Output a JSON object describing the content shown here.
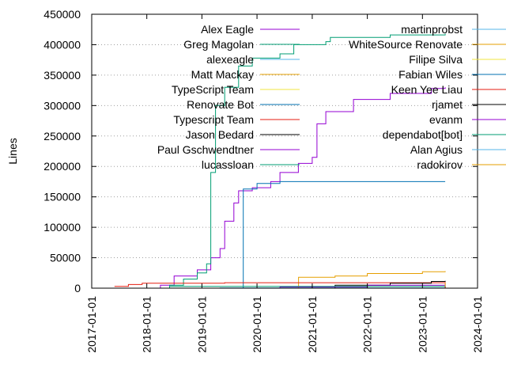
{
  "chart_data": {
    "type": "line",
    "ylabel": "Lines",
    "xlabel": "",
    "title": "",
    "ylim": [
      0,
      450000
    ],
    "xlim": [
      "2017-01-01",
      "2024-01-01"
    ],
    "yticks": [
      0,
      50000,
      100000,
      150000,
      200000,
      250000,
      300000,
      350000,
      400000,
      450000
    ],
    "ytick_labels": [
      "0",
      "50000",
      "100000",
      "150000",
      "200000",
      "250000",
      "300000",
      "350000",
      "400000",
      "450000"
    ],
    "xticks": [
      "2017-01-01",
      "2018-01-01",
      "2019-01-01",
      "2020-01-01",
      "2021-01-01",
      "2022-01-01",
      "2023-01-01",
      "2024-01-01"
    ],
    "grid": "horizontal dotted",
    "legend_placement": "inside top, two columns",
    "series": [
      {
        "name": "Alex Eagle",
        "color": "#9400d3",
        "points": [
          [
            "2017-10-01",
            0
          ],
          [
            "2018-04-01",
            5000
          ],
          [
            "2018-07-01",
            20000
          ],
          [
            "2018-12-01",
            30000
          ],
          [
            "2019-03-01",
            50000
          ],
          [
            "2019-05-01",
            65000
          ],
          [
            "2019-06-01",
            110000
          ],
          [
            "2019-08-01",
            140000
          ],
          [
            "2019-09-01",
            160000
          ],
          [
            "2019-12-01",
            165000
          ],
          [
            "2020-04-01",
            175000
          ],
          [
            "2020-06-01",
            190000
          ],
          [
            "2020-10-01",
            205000
          ],
          [
            "2021-01-01",
            215000
          ],
          [
            "2021-02-01",
            270000
          ],
          [
            "2021-04-01",
            290000
          ],
          [
            "2021-10-01",
            310000
          ],
          [
            "2022-06-01",
            320000
          ],
          [
            "2023-03-01",
            328000
          ],
          [
            "2023-06-01",
            330000
          ]
        ]
      },
      {
        "name": "Greg Magolan",
        "color": "#009e73",
        "points": [
          [
            "2017-10-01",
            0
          ],
          [
            "2018-06-01",
            5000
          ],
          [
            "2018-09-01",
            15000
          ],
          [
            "2018-12-01",
            25000
          ],
          [
            "2019-02-01",
            40000
          ],
          [
            "2019-03-01",
            190000
          ],
          [
            "2019-04-01",
            300000
          ],
          [
            "2019-06-01",
            330000
          ],
          [
            "2019-09-01",
            365000
          ],
          [
            "2019-12-01",
            378000
          ],
          [
            "2020-06-01",
            385000
          ],
          [
            "2020-09-01",
            400000
          ],
          [
            "2021-04-01",
            405000
          ],
          [
            "2021-05-01",
            412000
          ],
          [
            "2022-06-01",
            416000
          ],
          [
            "2023-06-01",
            418000
          ]
        ]
      },
      {
        "name": "alexeagle",
        "color": "#56b4e9",
        "points": [
          [
            "2018-06-01",
            0
          ],
          [
            "2019-05-01",
            500
          ],
          [
            "2023-06-01",
            800
          ]
        ]
      },
      {
        "name": "Matt Mackay",
        "color": "#e69f00",
        "points": [
          [
            "2020-10-01",
            0
          ],
          [
            "2020-10-02",
            18000
          ],
          [
            "2021-06-01",
            20000
          ],
          [
            "2022-01-01",
            24000
          ],
          [
            "2023-01-01",
            27000
          ],
          [
            "2023-06-01",
            28000
          ]
        ]
      },
      {
        "name": "TypeScript Team",
        "color": "#f0e442",
        "points": [
          [
            "2019-01-01",
            0
          ],
          [
            "2023-06-01",
            1000
          ]
        ]
      },
      {
        "name": "Renovate Bot",
        "color": "#0072b2",
        "points": [
          [
            "2019-10-01",
            0
          ],
          [
            "2019-10-02",
            163000
          ],
          [
            "2020-01-01",
            172000
          ],
          [
            "2020-06-01",
            175000
          ],
          [
            "2023-06-01",
            175000
          ]
        ]
      },
      {
        "name": "Typescript Team",
        "color": "#e51e10",
        "points": [
          [
            "2017-06-01",
            3000
          ],
          [
            "2017-09-01",
            6000
          ],
          [
            "2017-12-01",
            8000
          ],
          [
            "2019-06-01",
            9000
          ],
          [
            "2023-06-01",
            10000
          ]
        ]
      },
      {
        "name": "Jason Bedard",
        "color": "#000000",
        "points": [
          [
            "2021-03-01",
            0
          ],
          [
            "2021-06-01",
            5000
          ],
          [
            "2022-06-01",
            8000
          ],
          [
            "2023-03-01",
            11000
          ],
          [
            "2023-06-01",
            12000
          ]
        ]
      },
      {
        "name": "Paul Gschwendtner",
        "color": "#9400d3",
        "points": [
          [
            "2019-01-01",
            0
          ],
          [
            "2020-06-01",
            2000
          ],
          [
            "2022-01-01",
            5000
          ],
          [
            "2023-06-01",
            7000
          ]
        ]
      },
      {
        "name": "lucassloan",
        "color": "#009e73",
        "points": [
          [
            "2018-01-01",
            0
          ],
          [
            "2018-06-01",
            3000
          ],
          [
            "2023-06-01",
            4000
          ]
        ]
      },
      {
        "name": "martinprobst",
        "color": "#56b4e9",
        "points": [
          [
            "2017-08-01",
            0
          ],
          [
            "2023-06-01",
            1500
          ]
        ]
      },
      {
        "name": "WhiteSource Renovate",
        "color": "#e69f00",
        "points": [
          [
            "2020-01-01",
            0
          ],
          [
            "2023-06-01",
            9000
          ]
        ]
      },
      {
        "name": "Filipe Silva",
        "color": "#f0e442",
        "points": [
          [
            "2019-06-01",
            0
          ],
          [
            "2023-06-01",
            2000
          ]
        ]
      },
      {
        "name": "Fabian Wiles",
        "color": "#0072b2",
        "points": [
          [
            "2020-01-01",
            0
          ],
          [
            "2023-06-01",
            3000
          ]
        ]
      },
      {
        "name": "Keen Yee Liau",
        "color": "#e51e10",
        "points": [
          [
            "2018-06-01",
            0
          ],
          [
            "2023-06-01",
            2500
          ]
        ]
      },
      {
        "name": "rjamet",
        "color": "#000000",
        "points": [
          [
            "2019-01-01",
            0
          ],
          [
            "2023-06-01",
            500
          ]
        ]
      },
      {
        "name": "evanm",
        "color": "#9400d3",
        "points": [
          [
            "2017-06-01",
            0
          ],
          [
            "2023-06-01",
            400
          ]
        ]
      },
      {
        "name": "dependabot[bot]",
        "color": "#009e73",
        "points": [
          [
            "2020-06-01",
            0
          ],
          [
            "2023-06-01",
            300
          ]
        ]
      },
      {
        "name": "Alan Agius",
        "color": "#56b4e9",
        "points": [
          [
            "2019-06-01",
            0
          ],
          [
            "2023-06-01",
            600
          ]
        ]
      },
      {
        "name": "radokirov",
        "color": "#e69f00",
        "points": [
          [
            "2017-06-01",
            0
          ],
          [
            "2023-06-01",
            700
          ]
        ]
      }
    ]
  }
}
